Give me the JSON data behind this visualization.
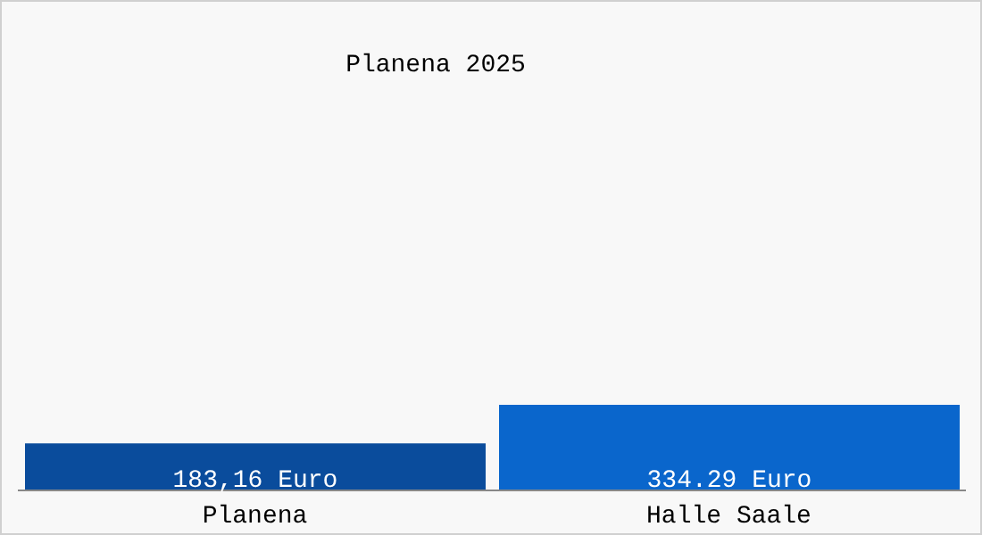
{
  "chart_data": {
    "type": "bar",
    "title": "Planena 2025",
    "categories": [
      "Planena",
      "Halle Saale"
    ],
    "values": [
      183.16,
      334.29
    ],
    "colors": [
      "#0a4c9c",
      "#0a66cc"
    ],
    "value_labels": [
      "183,16 Euro",
      "334.29 Euro"
    ]
  }
}
